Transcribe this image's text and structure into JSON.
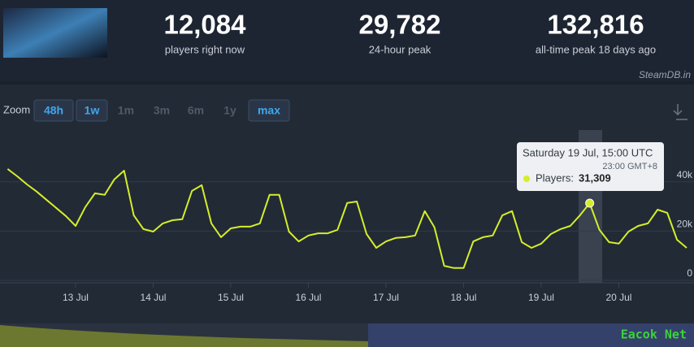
{
  "header": {
    "stats": [
      {
        "value": "12,084",
        "label": "players right now"
      },
      {
        "value": "29,782",
        "label": "24-hour peak"
      },
      {
        "value": "132,816",
        "label": "all-time peak 18 days ago"
      }
    ],
    "credit": "SteamDB.in"
  },
  "zoom": {
    "label": "Zoom",
    "buttons": [
      {
        "label": "48h",
        "active": true
      },
      {
        "label": "1w",
        "active": true
      },
      {
        "label": "1m",
        "active": false
      },
      {
        "label": "3m",
        "active": false
      },
      {
        "label": "6m",
        "active": false
      },
      {
        "label": "1y",
        "active": false
      },
      {
        "label": "max",
        "active": true
      }
    ]
  },
  "watermark": "Eacok Net",
  "chart_data": {
    "type": "line",
    "categories": [
      null,
      null,
      null,
      null,
      null,
      null,
      null,
      "13 Jul",
      null,
      null,
      null,
      null,
      null,
      null,
      null,
      "14 Jul",
      null,
      null,
      null,
      null,
      null,
      null,
      null,
      "15 Jul",
      null,
      null,
      null,
      null,
      null,
      null,
      null,
      "16 Jul",
      null,
      null,
      null,
      null,
      null,
      null,
      null,
      "17 Jul",
      null,
      null,
      null,
      null,
      null,
      null,
      null,
      "18 Jul",
      null,
      null,
      null,
      null,
      null,
      null,
      null,
      "19 Jul",
      null,
      null,
      null,
      null,
      null,
      null,
      null,
      "20 Jul",
      null,
      null,
      null,
      null,
      null,
      null,
      null
    ],
    "series": [
      {
        "name": "Players",
        "color": "#d4ee2a",
        "values": [
          45200,
          42200,
          38900,
          36000,
          32700,
          29400,
          26100,
          22100,
          29700,
          35300,
          34700,
          41000,
          44500,
          26400,
          20800,
          19800,
          23100,
          24400,
          24800,
          36300,
          38600,
          23100,
          17500,
          21100,
          21800,
          21800,
          23100,
          34700,
          34700,
          19800,
          15800,
          18200,
          19100,
          19100,
          20500,
          31400,
          32000,
          18800,
          13200,
          15800,
          17200,
          17500,
          18200,
          28100,
          21500,
          5900,
          5000,
          5000,
          15800,
          17500,
          18200,
          26400,
          28100,
          15500,
          13200,
          14900,
          18800,
          20800,
          22100,
          26400,
          31309,
          20500,
          15500,
          14900,
          19800,
          22100,
          23100,
          28700,
          27400,
          16500,
          13200
        ]
      }
    ],
    "ylim": [
      0,
      61000
    ],
    "yticks": [
      0,
      {
        "value": 20000,
        "label": "20k"
      },
      {
        "value": 40000,
        "label": "40k"
      }
    ],
    "grid": true,
    "tooltip": {
      "index": 60,
      "title": "Saturday 19 Jul, 15:00 UTC",
      "subtitle": "23:00 GMT+8",
      "label": "Players:",
      "value_label": "31,309"
    }
  }
}
